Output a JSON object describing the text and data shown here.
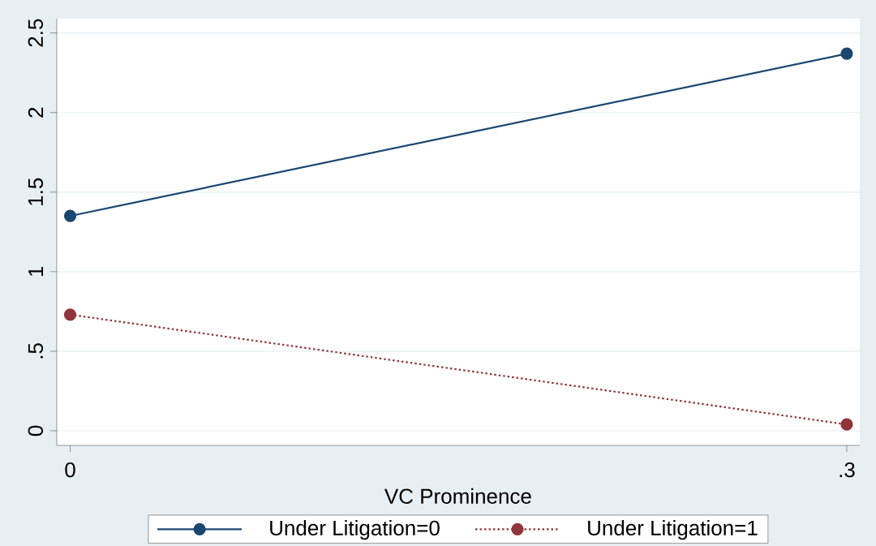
{
  "chart_data": {
    "type": "line",
    "xlabel": "VC Prominence",
    "x": [
      0,
      0.3
    ],
    "series": [
      {
        "name": "Under Litigation=0",
        "color": "#1a476f",
        "values": [
          1.35,
          2.37
        ],
        "line_style": "solid"
      },
      {
        "name": "Under Litigation=1",
        "color": "#90353b",
        "values": [
          0.73,
          0.04
        ],
        "line_style": "dotted"
      }
    ],
    "xlim": [
      -0.0052,
      0.305
    ],
    "ylim": [
      -0.092,
      2.59
    ],
    "xticks": [
      0,
      {
        "value": 0.3,
        "label": ".3"
      }
    ],
    "yticks": [
      0,
      {
        "value": 0.5,
        "label": ".5"
      },
      1,
      1.5,
      2,
      2.5
    ],
    "grid": "y",
    "legend": "bottom",
    "marker": "circle"
  }
}
